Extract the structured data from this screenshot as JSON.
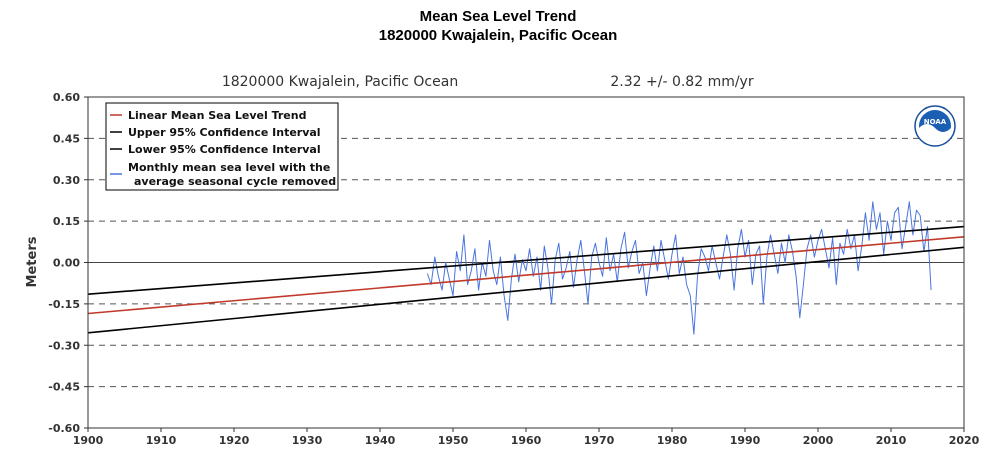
{
  "title": "Mean Sea Level Trend",
  "subtitle": "1820000 Kwajalein, Pacific Ocean",
  "plot_header": {
    "station": "1820000 Kwajalein, Pacific Ocean",
    "trend_text": "2.32 +/-  0.82 mm/yr"
  },
  "logo_text": "NOAA",
  "colors": {
    "trend": "#c0392b",
    "confidence": "#000000",
    "monthly": "#4a74e0",
    "grid": "#555555"
  },
  "chart_data": {
    "type": "line",
    "title": "Mean Sea Level Trend",
    "subtitle": "1820000 Kwajalein, Pacific Ocean",
    "xlabel": "",
    "ylabel": "Meters",
    "xlim": [
      1900,
      2020
    ],
    "ylim": [
      -0.6,
      0.6
    ],
    "x_ticks": [
      "1900",
      "1910",
      "1920",
      "1930",
      "1940",
      "1950",
      "1960",
      "1970",
      "1980",
      "1990",
      "2000",
      "2010",
      "2020"
    ],
    "y_ticks": [
      "0.60",
      "0.45",
      "0.30",
      "0.15",
      "0.00",
      "-0.15",
      "-0.30",
      "-0.45",
      "-0.60"
    ],
    "grid": "dashed horizontal",
    "legend_position": "top-left",
    "series": [
      {
        "name": "Linear Mean Sea Level Trend",
        "style": "line",
        "x": [
          1900,
          2020
        ],
        "y": [
          -0.185,
          0.093
        ]
      },
      {
        "name": "Upper 95% Confidence Interval",
        "style": "line",
        "x": [
          1900,
          2020
        ],
        "y": [
          -0.115,
          0.13
        ]
      },
      {
        "name": "Lower 95% Confidence Interval",
        "style": "line",
        "x": [
          1900,
          2020
        ],
        "y": [
          -0.255,
          0.055
        ]
      },
      {
        "name": "Monthly mean sea level with the average seasonal cycle removed",
        "style": "line",
        "x": [
          1946.5,
          1947.0,
          1947.5,
          1948.0,
          1948.5,
          1949.0,
          1949.5,
          1950.0,
          1950.5,
          1951.0,
          1951.5,
          1952.0,
          1952.5,
          1953.0,
          1953.5,
          1954.0,
          1954.5,
          1955.0,
          1955.5,
          1956.0,
          1956.5,
          1957.0,
          1957.5,
          1958.0,
          1958.5,
          1959.0,
          1959.5,
          1960.0,
          1960.5,
          1961.0,
          1961.5,
          1962.0,
          1962.5,
          1963.0,
          1963.5,
          1964.0,
          1964.5,
          1965.0,
          1965.5,
          1966.0,
          1966.5,
          1967.0,
          1967.5,
          1968.0,
          1968.5,
          1969.0,
          1969.5,
          1970.0,
          1970.5,
          1971.0,
          1971.5,
          1972.0,
          1972.5,
          1973.0,
          1973.5,
          1974.0,
          1974.5,
          1975.0,
          1975.5,
          1976.0,
          1976.5,
          1977.0,
          1977.5,
          1978.0,
          1978.5,
          1979.0,
          1979.5,
          1980.0,
          1980.5,
          1981.0,
          1981.5,
          1982.0,
          1982.5,
          1983.0,
          1983.5,
          1984.0,
          1984.5,
          1985.0,
          1985.5,
          1986.0,
          1986.5,
          1987.0,
          1987.5,
          1988.0,
          1988.5,
          1989.0,
          1989.5,
          1990.0,
          1990.5,
          1991.0,
          1991.5,
          1992.0,
          1992.5,
          1993.0,
          1993.5,
          1994.0,
          1994.5,
          1995.0,
          1995.5,
          1996.0,
          1996.5,
          1997.0,
          1997.5,
          1998.0,
          1998.5,
          1999.0,
          1999.5,
          2000.0,
          2000.5,
          2001.0,
          2001.5,
          2002.0,
          2002.5,
          2003.0,
          2003.5,
          2004.0,
          2004.5,
          2005.0,
          2005.5,
          2006.0,
          2006.5,
          2007.0,
          2007.5,
          2008.0,
          2008.5,
          2009.0,
          2009.5,
          2010.0,
          2010.5,
          2011.0,
          2011.5,
          2012.0,
          2012.5,
          2013.0,
          2013.5,
          2014.0,
          2014.5,
          2015.0,
          2015.5
        ],
        "y": [
          -0.04,
          -0.08,
          0.02,
          -0.05,
          -0.1,
          0.0,
          -0.06,
          -0.12,
          0.04,
          -0.03,
          0.1,
          -0.08,
          -0.03,
          0.05,
          -0.1,
          0.0,
          -0.05,
          0.08,
          -0.03,
          -0.08,
          0.02,
          -0.12,
          -0.21,
          -0.06,
          0.03,
          -0.07,
          0.01,
          -0.03,
          0.05,
          -0.05,
          0.02,
          -0.1,
          0.06,
          -0.02,
          -0.15,
          0.01,
          0.07,
          -0.06,
          -0.02,
          0.04,
          -0.09,
          0.01,
          0.08,
          -0.03,
          -0.15,
          0.02,
          0.07,
          0.0,
          -0.05,
          0.09,
          -0.03,
          0.03,
          -0.07,
          0.05,
          0.11,
          -0.02,
          0.04,
          0.08,
          -0.04,
          0.0,
          -0.12,
          -0.02,
          0.06,
          -0.03,
          0.08,
          0.01,
          -0.06,
          0.03,
          0.1,
          -0.04,
          0.02,
          -0.08,
          -0.12,
          -0.26,
          -0.05,
          0.05,
          0.02,
          -0.03,
          0.06,
          0.0,
          -0.06,
          0.02,
          0.1,
          0.03,
          -0.1,
          0.05,
          0.12,
          0.02,
          0.08,
          -0.08,
          0.03,
          0.06,
          -0.15,
          0.02,
          0.1,
          0.03,
          -0.04,
          0.07,
          0.0,
          0.1,
          0.04,
          -0.05,
          -0.2,
          -0.08,
          0.05,
          0.1,
          0.02,
          0.08,
          0.12,
          0.05,
          -0.02,
          0.09,
          -0.08,
          0.07,
          0.03,
          0.12,
          0.05,
          0.1,
          -0.03,
          0.06,
          0.18,
          0.08,
          0.22,
          0.12,
          0.18,
          0.03,
          0.15,
          0.08,
          0.18,
          0.2,
          0.05,
          0.13,
          0.22,
          0.1,
          0.19,
          0.17,
          0.04,
          0.13,
          -0.1
        ]
      }
    ]
  },
  "legend": {
    "items": [
      {
        "label": "Linear Mean Sea Level Trend",
        "color": "#c0392b"
      },
      {
        "label": "Upper 95% Confidence Interval",
        "color": "#000000"
      },
      {
        "label": "Lower 95% Confidence Interval",
        "color": "#000000"
      },
      {
        "label": "Monthly mean sea level with the",
        "label2": "average seasonal cycle removed",
        "color": "#4a74e0"
      }
    ]
  }
}
